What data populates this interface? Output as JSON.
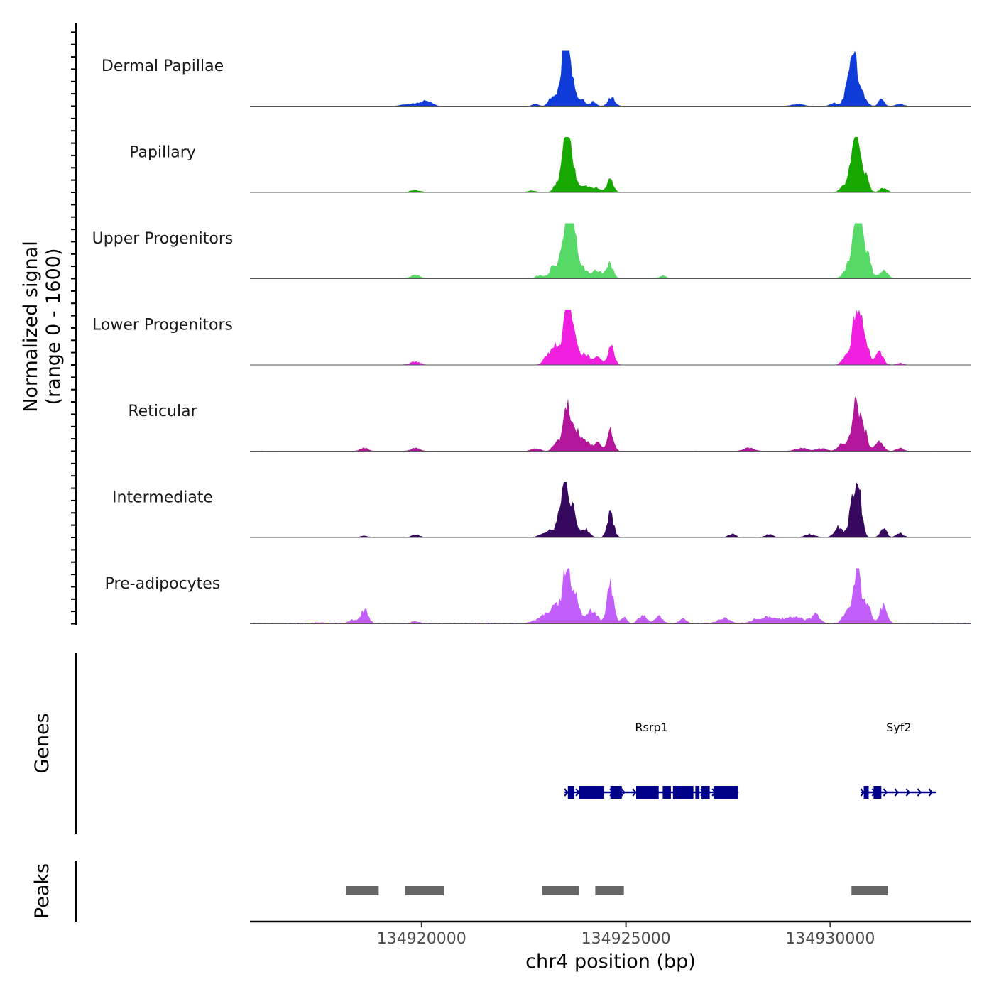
{
  "chart_data": {
    "type": "area",
    "title": "",
    "ylabel_line1": "Normalized signal",
    "ylabel_line2": "(range 0 - 1600)",
    "ylim": [
      0,
      1600
    ],
    "xlabel": "chr4 position (bp)",
    "chromosome": "chr4",
    "xlim": [
      134915800,
      134933450
    ],
    "xticks": [
      134920000,
      134925000,
      134930000
    ],
    "xtick_labels": [
      "134920000",
      "134925000",
      "134930000"
    ],
    "series": [
      {
        "name": "Dermal Papillae",
        "color": "#0f3cd9",
        "peaks": [
          [
            134919600,
            40,
            260
          ],
          [
            134919900,
            85,
            260
          ],
          [
            134920150,
            150,
            220
          ],
          [
            134922800,
            60,
            150
          ],
          [
            134923200,
            250,
            180
          ],
          [
            134923450,
            600,
            200
          ],
          [
            134923530,
            1350,
            140
          ],
          [
            134923630,
            1100,
            180
          ],
          [
            134923900,
            200,
            200
          ],
          [
            134924200,
            120,
            150
          ],
          [
            134924650,
            250,
            170
          ],
          [
            134929200,
            60,
            300
          ],
          [
            134930100,
            80,
            200
          ],
          [
            134930450,
            800,
            170
          ],
          [
            134930600,
            1250,
            180
          ],
          [
            134930800,
            300,
            180
          ],
          [
            134931250,
            250,
            130
          ],
          [
            134931700,
            60,
            180
          ]
        ],
        "noise": 12
      },
      {
        "name": "Papillary",
        "color": "#17a800",
        "peaks": [
          [
            134919850,
            60,
            250
          ],
          [
            134922700,
            50,
            200
          ],
          [
            134923300,
            200,
            160
          ],
          [
            134923500,
            700,
            200
          ],
          [
            134923560,
            1300,
            140
          ],
          [
            134923700,
            600,
            180
          ],
          [
            134924000,
            200,
            250
          ],
          [
            134924300,
            120,
            200
          ],
          [
            134924620,
            380,
            160
          ],
          [
            134930350,
            180,
            200
          ],
          [
            134930550,
            700,
            200
          ],
          [
            134930650,
            1320,
            160
          ],
          [
            134930850,
            500,
            170
          ],
          [
            134931300,
            120,
            180
          ]
        ],
        "noise": 10
      },
      {
        "name": "Upper Progenitors",
        "color": "#56d966",
        "peaks": [
          [
            134919850,
            100,
            250
          ],
          [
            134922900,
            100,
            200
          ],
          [
            134923200,
            300,
            160
          ],
          [
            134923450,
            700,
            200
          ],
          [
            134923560,
            1700,
            140
          ],
          [
            134923720,
            1200,
            170
          ],
          [
            134923950,
            300,
            250
          ],
          [
            134924300,
            250,
            200
          ],
          [
            134924600,
            450,
            170
          ],
          [
            134925900,
            100,
            160
          ],
          [
            134930400,
            250,
            200
          ],
          [
            134930600,
            900,
            200
          ],
          [
            134930700,
            1850,
            150
          ],
          [
            134930900,
            700,
            180
          ],
          [
            134931300,
            250,
            200
          ]
        ],
        "noise": 10
      },
      {
        "name": "Lower Progenitors",
        "color": "#f01fdf",
        "peaks": [
          [
            134919850,
            90,
            250
          ],
          [
            134923100,
            300,
            200
          ],
          [
            134923300,
            550,
            170
          ],
          [
            134923550,
            1800,
            150
          ],
          [
            134923700,
            1100,
            180
          ],
          [
            134924000,
            300,
            220
          ],
          [
            134924300,
            200,
            200
          ],
          [
            134924630,
            550,
            160
          ],
          [
            134930400,
            300,
            200
          ],
          [
            134930650,
            1800,
            180
          ],
          [
            134930850,
            800,
            170
          ],
          [
            134931200,
            400,
            180
          ],
          [
            134931700,
            60,
            180
          ]
        ],
        "noise": 12
      },
      {
        "name": "Reticular",
        "color": "#b3169a",
        "peaks": [
          [
            134918600,
            90,
            200
          ],
          [
            134919850,
            90,
            220
          ],
          [
            134922800,
            90,
            200
          ],
          [
            134923300,
            300,
            170
          ],
          [
            134923550,
            1350,
            160
          ],
          [
            134923750,
            700,
            180
          ],
          [
            134924000,
            300,
            220
          ],
          [
            134924300,
            220,
            200
          ],
          [
            134924620,
            600,
            150
          ],
          [
            134928000,
            100,
            250
          ],
          [
            134929300,
            80,
            300
          ],
          [
            134929800,
            80,
            250
          ],
          [
            134930300,
            250,
            200
          ],
          [
            134930600,
            1200,
            180
          ],
          [
            134930800,
            700,
            200
          ],
          [
            134931200,
            300,
            180
          ],
          [
            134931700,
            80,
            180
          ]
        ],
        "noise": 15
      },
      {
        "name": "Intermediate",
        "color": "#36085e",
        "peaks": [
          [
            134918600,
            50,
            180
          ],
          [
            134919850,
            80,
            200
          ],
          [
            134922900,
            60,
            200
          ],
          [
            134923100,
            200,
            180
          ],
          [
            134923400,
            700,
            200
          ],
          [
            134923520,
            1400,
            140
          ],
          [
            134923700,
            800,
            180
          ],
          [
            134924000,
            250,
            200
          ],
          [
            134924620,
            700,
            160
          ],
          [
            134927600,
            100,
            180
          ],
          [
            134928500,
            90,
            200
          ],
          [
            134929500,
            100,
            250
          ],
          [
            134930200,
            300,
            200
          ],
          [
            134930550,
            1000,
            170
          ],
          [
            134930700,
            1250,
            160
          ],
          [
            134931300,
            300,
            150
          ],
          [
            134931700,
            120,
            180
          ]
        ],
        "noise": 12
      },
      {
        "name": "Pre-adipocytes",
        "color": "#c25ef9",
        "peaks": [
          [
            134917500,
            30,
            300
          ],
          [
            134918300,
            100,
            180
          ],
          [
            134918600,
            400,
            180
          ],
          [
            134919850,
            60,
            220
          ],
          [
            134922800,
            80,
            250
          ],
          [
            134923000,
            200,
            200
          ],
          [
            134923300,
            600,
            250
          ],
          [
            134923550,
            1700,
            160
          ],
          [
            134923750,
            900,
            180
          ],
          [
            134924150,
            350,
            300
          ],
          [
            134924620,
            1100,
            160
          ],
          [
            134924950,
            200,
            150
          ],
          [
            134925400,
            250,
            200
          ],
          [
            134925800,
            200,
            200
          ],
          [
            134926400,
            130,
            180
          ],
          [
            134927400,
            150,
            300
          ],
          [
            134928400,
            180,
            500
          ],
          [
            134929100,
            200,
            500
          ],
          [
            134929650,
            250,
            200
          ],
          [
            134930400,
            350,
            200
          ],
          [
            134930650,
            1650,
            180
          ],
          [
            134930900,
            600,
            170
          ],
          [
            134931300,
            500,
            180
          ]
        ],
        "noise": 35
      }
    ],
    "gene_track_label": "Genes",
    "genes": [
      {
        "name": "Rsrp1",
        "start": 134923500,
        "end": 134927750,
        "strand": "+",
        "exons": [
          [
            134923580,
            134923740
          ],
          [
            134923860,
            134924460
          ],
          [
            134924620,
            134924900
          ],
          [
            134925250,
            134925800
          ],
          [
            134925900,
            134926100
          ],
          [
            134926150,
            134926650
          ],
          [
            134926700,
            134926800
          ],
          [
            134926850,
            134927050
          ],
          [
            134927150,
            134927750
          ]
        ]
      },
      {
        "name": "Syf2",
        "start": 134930750,
        "end": 134932600,
        "strand": "+",
        "exons": [
          [
            134930820,
            134930940
          ],
          [
            134931060,
            134931250
          ]
        ]
      }
    ],
    "peak_track_label": "Peaks",
    "peaks": [
      [
        134918150,
        134918950
      ],
      [
        134919600,
        134920550
      ],
      [
        134922950,
        134923850
      ],
      [
        134924250,
        134924950
      ],
      [
        134930520,
        134931400
      ]
    ],
    "colors": {
      "gene": "#00008b",
      "peak": "#666666",
      "axis": "#000000",
      "baseline": "#555555"
    }
  }
}
